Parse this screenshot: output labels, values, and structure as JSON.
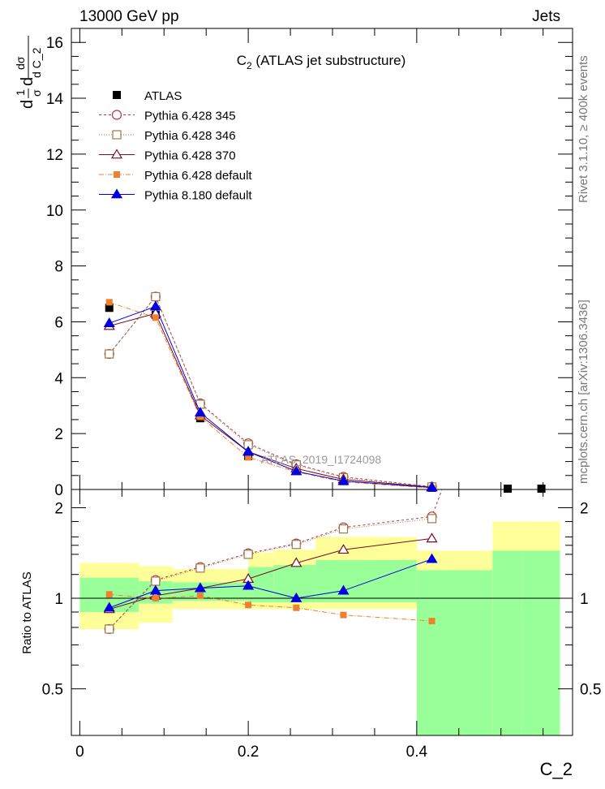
{
  "header": {
    "left": "13000 GeV pp",
    "right": "Jets"
  },
  "side_labels": {
    "right_top": "Rivet 3.1.10, ≥ 400k events",
    "right_bottom": "mcplots.cern.ch [arXiv:1306.3436]"
  },
  "chart_data": {
    "type": "line",
    "title_main": "C",
    "title_sub": "2",
    "title_rest": " (ATLAS jet substructure)",
    "watermark": "ATLAS_2019_I1724098",
    "xlabel": "C_2",
    "ylabel": "dσ / d C_2 · 1/σ",
    "ylabel_parts": {
      "num1": "1",
      "den1": "σ",
      "d1": "d",
      "num2": "dσ",
      "den2": "d C_2",
      "d2": "d"
    },
    "xlim": [
      -0.01,
      0.585
    ],
    "ylim": [
      0,
      16.5
    ],
    "xticks": [
      0,
      0.2,
      0.4
    ],
    "xtick_labels": [
      "0",
      "0.2",
      "0.4"
    ],
    "yticks": [
      0,
      2,
      4,
      6,
      8,
      10,
      12,
      14,
      16
    ],
    "ytick_labels": [
      "0",
      "2",
      "4",
      "6",
      "8",
      "10",
      "12",
      "14",
      "16"
    ],
    "ratio": {
      "ylabel": "Ratio to ATLAS",
      "ylim": [
        0.35,
        2.3
      ],
      "yticks": [
        0.5,
        1,
        2
      ],
      "ytick_labels": [
        "0.5",
        "1",
        "2"
      ]
    },
    "bin_edges": [
      0.0,
      0.07,
      0.11,
      0.17,
      0.2,
      0.23,
      0.28,
      0.3,
      0.4,
      0.49,
      0.525,
      0.57
    ],
    "band_outer": [
      [
        0.79,
        1.31
      ],
      [
        0.83,
        1.28
      ],
      [
        0.92,
        1.25
      ],
      [
        0.92,
        1.25
      ],
      [
        0.92,
        1.42
      ],
      [
        0.92,
        1.45
      ],
      [
        0.92,
        1.6
      ],
      [
        0.92,
        1.6
      ],
      [
        0.0,
        1.44
      ],
      [
        0.0,
        1.8
      ],
      [
        0.0,
        1.8
      ]
    ],
    "band_inner": [
      [
        0.9,
        1.17
      ],
      [
        0.96,
        1.14
      ],
      [
        0.98,
        1.13
      ],
      [
        0.98,
        1.13
      ],
      [
        0.97,
        1.27
      ],
      [
        0.97,
        1.29
      ],
      [
        0.97,
        1.34
      ],
      [
        0.97,
        1.34
      ],
      [
        0.0,
        1.24
      ],
      [
        0.0,
        1.44
      ],
      [
        0.0,
        1.44
      ]
    ],
    "legend": [
      "ATLAS",
      "Pythia 6.428 345",
      "Pythia 6.428 346",
      "Pythia 6.428 370",
      "Pythia 6.428 default",
      "Pythia 8.180 default"
    ],
    "data_x": [
      0.035,
      0.09,
      0.143,
      0.2,
      0.257,
      0.313,
      0.418,
      0.508,
      0.548
    ],
    "data_y": [
      6.5,
      6.25,
      2.55,
      1.2,
      0.68,
      0.3,
      0.06,
      0.02,
      0.01
    ],
    "series": [
      {
        "name": "Pythia 6.428 345",
        "color": "#b03a48",
        "dash": "3,3",
        "marker": "circle-open",
        "x": [
          0.035,
          0.09,
          0.143,
          0.2,
          0.257,
          0.313,
          0.418
        ],
        "y": [
          4.85,
          6.9,
          3.08,
          1.65,
          0.9,
          0.45,
          0.1
        ],
        "ratio_x": [
          0.035,
          0.09,
          0.143,
          0.2,
          0.257,
          0.313,
          0.418,
          0.43
        ],
        "ratio": [
          0.79,
          1.15,
          1.27,
          1.41,
          1.52,
          1.72,
          1.87,
          2.3
        ]
      },
      {
        "name": "Pythia 6.428 346",
        "color": "#a0774a",
        "dash": "1,2",
        "marker": "square-open",
        "x": [
          0.035,
          0.09,
          0.143,
          0.2,
          0.257,
          0.313,
          0.418
        ],
        "y": [
          4.85,
          6.9,
          3.05,
          1.6,
          0.88,
          0.42,
          0.09
        ],
        "ratio_x": [
          0.035,
          0.09,
          0.143,
          0.2,
          0.257,
          0.313,
          0.418
        ],
        "ratio": [
          0.79,
          1.14,
          1.26,
          1.4,
          1.51,
          1.7,
          1.84
        ]
      },
      {
        "name": "Pythia 6.428 370",
        "color": "#7a0c1c",
        "dash": "",
        "marker": "triangle-open",
        "x": [
          0.035,
          0.09,
          0.143,
          0.2,
          0.257,
          0.313,
          0.418
        ],
        "y": [
          5.85,
          6.3,
          2.65,
          1.35,
          0.75,
          0.36,
          0.08
        ],
        "ratio_x": [
          0.035,
          0.09,
          0.143,
          0.2,
          0.257,
          0.313,
          0.418
        ],
        "ratio": [
          0.92,
          1.02,
          1.08,
          1.16,
          1.31,
          1.45,
          1.58
        ]
      },
      {
        "name": "Pythia 6.428 default",
        "color": "#f08030",
        "dash": "6,2,1,2",
        "marker": "square-filled",
        "x": [
          0.035,
          0.09,
          0.143,
          0.2,
          0.257,
          0.313,
          0.418
        ],
        "y": [
          6.7,
          6.15,
          2.6,
          1.15,
          0.63,
          0.27,
          0.05
        ],
        "ratio_x": [
          0.035,
          0.09,
          0.143,
          0.2,
          0.257,
          0.313,
          0.418
        ],
        "ratio": [
          1.03,
          1.0,
          1.02,
          0.95,
          0.93,
          0.88,
          0.84
        ]
      },
      {
        "name": "Pythia 8.180 default",
        "color": "#0000e0",
        "dash": "",
        "marker": "triangle-filled",
        "x": [
          0.035,
          0.09,
          0.143,
          0.2,
          0.257,
          0.313,
          0.418
        ],
        "y": [
          5.95,
          6.55,
          2.75,
          1.35,
          0.65,
          0.3,
          0.07
        ],
        "ratio_x": [
          0.035,
          0.09,
          0.143,
          0.2,
          0.257,
          0.313,
          0.418
        ],
        "ratio": [
          0.93,
          1.06,
          1.08,
          1.1,
          1.0,
          1.06,
          1.35
        ]
      }
    ]
  }
}
